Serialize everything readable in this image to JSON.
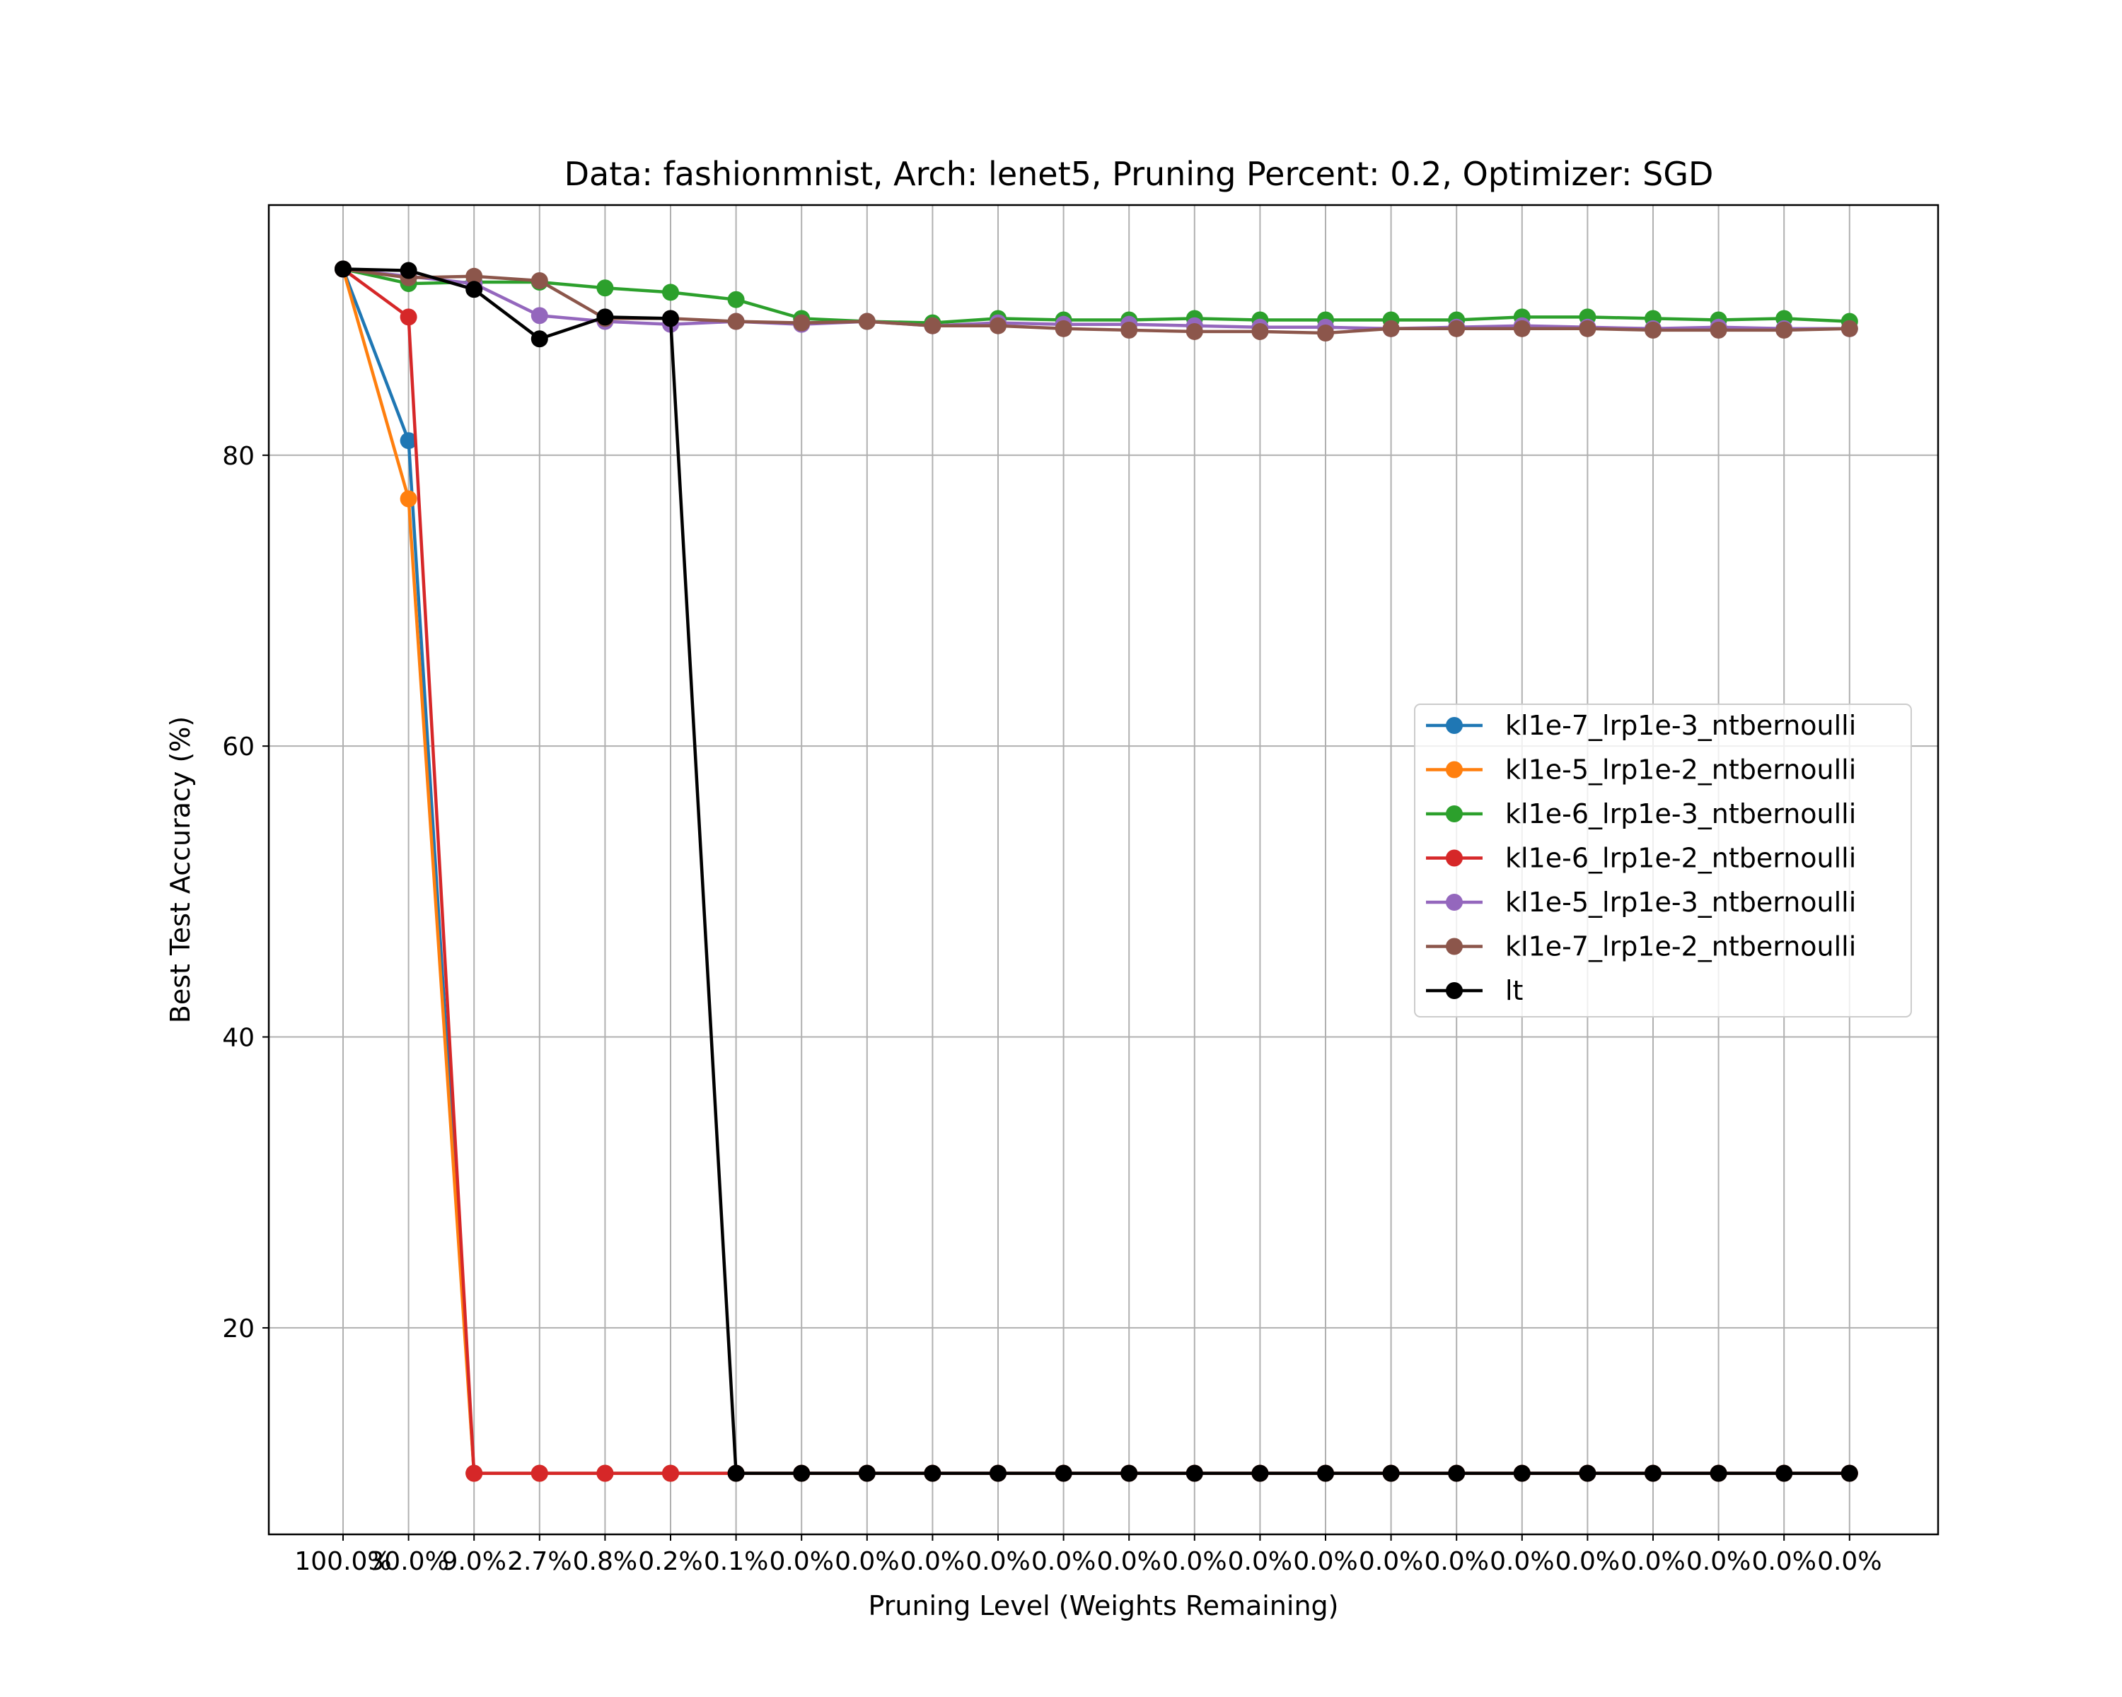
{
  "chart_data": {
    "type": "line",
    "title": "Data: fashionmnist, Arch: lenet5, Pruning Percent: 0.2, Optimizer: SGD",
    "xlabel": "Pruning Level (Weights Remaining)",
    "ylabel": "Best Test Accuracy (%)",
    "categories": [
      "100.0%",
      "30.0%",
      "9.0%",
      "2.7%",
      "0.8%",
      "0.2%",
      "0.1%",
      "0.0%",
      "0.0%",
      "0.0%",
      "0.0%",
      "0.0%",
      "0.0%",
      "0.0%",
      "0.0%",
      "0.0%",
      "0.0%",
      "0.0%",
      "0.0%",
      "0.0%",
      "0.0%",
      "0.0%",
      "0.0%",
      "0.0%"
    ],
    "yticks": [
      20,
      40,
      60,
      80
    ],
    "ylim": [
      5.8,
      97.2
    ],
    "grid": true,
    "legend_position": "center-right",
    "series": [
      {
        "name": "kl1e-7_lrp1e-3_ntbernoulli",
        "color": "#1f77b4",
        "values": [
          92.8,
          81.0,
          10.0,
          10.0,
          10.0,
          10.0,
          10.0,
          10.0,
          10.0,
          10.0,
          10.0,
          10.0,
          10.0,
          10.0,
          10.0,
          10.0,
          10.0,
          10.0,
          10.0,
          10.0,
          10.0,
          10.0,
          10.0,
          10.0
        ]
      },
      {
        "name": "kl1e-5_lrp1e-2_ntbernoulli",
        "color": "#ff7f0e",
        "values": [
          92.8,
          77.0,
          10.0,
          10.0,
          10.0,
          10.0,
          10.0,
          10.0,
          10.0,
          10.0,
          10.0,
          10.0,
          10.0,
          10.0,
          10.0,
          10.0,
          10.0,
          10.0,
          10.0,
          10.0,
          10.0,
          10.0,
          10.0,
          10.0
        ]
      },
      {
        "name": "kl1e-6_lrp1e-3_ntbernoulli",
        "color": "#2ca02c",
        "values": [
          92.8,
          91.8,
          91.9,
          91.9,
          91.5,
          91.2,
          90.7,
          89.4,
          89.2,
          89.1,
          89.4,
          89.3,
          89.3,
          89.4,
          89.3,
          89.3,
          89.3,
          89.3,
          89.5,
          89.5,
          89.4,
          89.3,
          89.4,
          89.2
        ]
      },
      {
        "name": "kl1e-6_lrp1e-2_ntbernoulli",
        "color": "#d62728",
        "values": [
          92.8,
          89.5,
          10.0,
          10.0,
          10.0,
          10.0,
          10.0,
          10.0,
          10.0,
          10.0,
          10.0,
          10.0,
          10.0,
          10.0,
          10.0,
          10.0,
          10.0,
          10.0,
          10.0,
          10.0,
          10.0,
          10.0,
          10.0,
          10.0
        ]
      },
      {
        "name": "kl1e-5_lrp1e-3_ntbernoulli",
        "color": "#9467bd",
        "values": [
          92.8,
          92.3,
          91.8,
          89.6,
          89.2,
          89.0,
          89.2,
          89.0,
          89.2,
          88.9,
          89.1,
          89.0,
          89.0,
          88.9,
          88.8,
          88.8,
          88.7,
          88.8,
          88.9,
          88.8,
          88.7,
          88.8,
          88.7,
          88.7
        ]
      },
      {
        "name": "kl1e-7_lrp1e-2_ntbernoulli",
        "color": "#8c564b",
        "values": [
          92.8,
          92.2,
          92.3,
          92.0,
          89.4,
          89.4,
          89.2,
          89.1,
          89.2,
          88.9,
          88.9,
          88.7,
          88.6,
          88.5,
          88.5,
          88.4,
          88.7,
          88.7,
          88.7,
          88.7,
          88.6,
          88.6,
          88.6,
          88.7
        ]
      },
      {
        "name": "lt",
        "color": "#000000",
        "values": [
          92.8,
          92.7,
          91.4,
          88.0,
          89.5,
          89.4,
          10.0,
          10.0,
          10.0,
          10.0,
          10.0,
          10.0,
          10.0,
          10.0,
          10.0,
          10.0,
          10.0,
          10.0,
          10.0,
          10.0,
          10.0,
          10.0,
          10.0,
          10.0
        ]
      }
    ]
  }
}
